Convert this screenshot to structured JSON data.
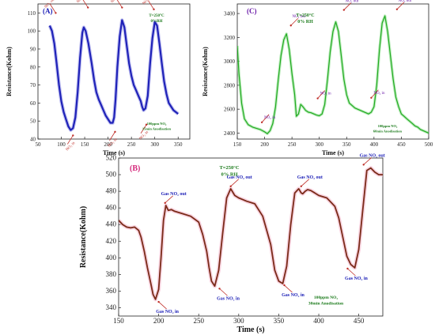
{
  "chart_data": [
    {
      "type": "line",
      "panel_label": "(A)",
      "xlabel": "Time (s)",
      "ylabel": "Resistance(Kohm)",
      "xlim": [
        50,
        375
      ],
      "ylim": [
        40,
        115
      ],
      "xticks": [
        50,
        100,
        150,
        200,
        250,
        300,
        350
      ],
      "yticks": [
        40,
        50,
        60,
        70,
        80,
        90,
        100,
        110
      ],
      "conditions": [
        "T=250°C",
        "0%RH"
      ],
      "note": [
        "100ppm NO₂",
        "15min Anodisation"
      ],
      "colors": {
        "line": "#1f22b8",
        "shade": "#9a9ae8",
        "text": "#1a7a1a",
        "arrow": "#c0302a",
        "label": "#1f22b8"
      },
      "series": [
        {
          "x": [
            75,
            80,
            85,
            90,
            95,
            100,
            105,
            110,
            115,
            120,
            125,
            130,
            135,
            140,
            145,
            148,
            152,
            158,
            165,
            170,
            175,
            180,
            185,
            190,
            195,
            200,
            205,
            210,
            213,
            216,
            220,
            225,
            230,
            235,
            240,
            245,
            250,
            255,
            260,
            265,
            270,
            273,
            276,
            280,
            285,
            290,
            295,
            300,
            305,
            310,
            315,
            320,
            325,
            330,
            340,
            350
          ],
          "y": [
            103,
            100,
            93,
            82,
            70,
            61,
            55,
            51,
            47,
            45,
            46,
            52,
            66,
            85,
            99,
            102,
            100,
            93,
            82,
            73,
            66,
            62,
            59,
            56,
            53,
            51,
            49,
            49,
            52,
            62,
            80,
            97,
            106,
            102,
            92,
            82,
            75,
            70,
            67,
            64,
            61,
            58,
            56,
            57,
            64,
            82,
            96,
            105,
            103,
            93,
            82,
            72,
            65,
            60,
            56,
            54
          ]
        }
      ],
      "annotations": [
        {
          "text": "NO₂ out",
          "x": 88,
          "y": 110
        },
        {
          "text": "NO₂ out",
          "x": 157,
          "y": 113
        },
        {
          "text": "NO₂ out",
          "x": 230,
          "y": 113
        },
        {
          "text": "NO₂ out",
          "x": 298,
          "y": 112
        },
        {
          "text": "NO₂ in",
          "x": 125,
          "y": 42
        },
        {
          "text": "NO₂ in",
          "x": 215,
          "y": 44
        },
        {
          "text": "NO₂ in",
          "x": 282,
          "y": 48
        }
      ]
    },
    {
      "type": "line",
      "panel_label": "(C)",
      "xlabel": "Time (s)",
      "ylabel": "Resistance(Kohm)",
      "xlim": [
        150,
        500
      ],
      "ylim": [
        2350,
        3480
      ],
      "xticks": [
        150,
        200,
        250,
        300,
        350,
        400,
        450,
        500
      ],
      "yticks": [
        2400,
        2600,
        2800,
        3000,
        3200,
        3400
      ],
      "conditions": [
        "T=250°C",
        "0% RH"
      ],
      "note": [
        "100ppm NO₂",
        "60min Anodisation"
      ],
      "colors": {
        "line": "#22aa22",
        "shade": "#90e090",
        "text": "#1a7a1a",
        "arrow": "#c0302a",
        "label": "#6a1aa8"
      },
      "series": [
        {
          "x": [
            150,
            153,
            158,
            163,
            170,
            178,
            185,
            192,
            200,
            205,
            210,
            215,
            220,
            225,
            230,
            235,
            240,
            245,
            250,
            255,
            258,
            262,
            266,
            270,
            275,
            280,
            285,
            290,
            295,
            300,
            305,
            310,
            315,
            320,
            325,
            330,
            335,
            340,
            345,
            350,
            355,
            360,
            365,
            370,
            375,
            380,
            385,
            390,
            395,
            400,
            405,
            410,
            415,
            420,
            425,
            430,
            435,
            440,
            445,
            450,
            455,
            460,
            465,
            470,
            475,
            480,
            485,
            490,
            495,
            500
          ],
          "y": [
            3130,
            2900,
            2650,
            2520,
            2470,
            2450,
            2440,
            2430,
            2410,
            2395,
            2420,
            2480,
            2620,
            2850,
            3050,
            3180,
            3230,
            3100,
            2900,
            2720,
            2540,
            2560,
            2640,
            2620,
            2590,
            2575,
            2570,
            2560,
            2550,
            2545,
            2560,
            2640,
            2850,
            3080,
            3250,
            3330,
            3250,
            3050,
            2850,
            2720,
            2650,
            2630,
            2610,
            2600,
            2590,
            2580,
            2570,
            2560,
            2575,
            2620,
            2800,
            3100,
            3320,
            3380,
            3250,
            3050,
            2850,
            2700,
            2620,
            2560,
            2540,
            2520,
            2500,
            2480,
            2460,
            2450,
            2430,
            2420,
            2410,
            2400
          ]
        }
      ],
      "annotations": [
        {
          "text": "NO₂ out",
          "x": 248,
          "y": 3300
        },
        {
          "text": "NO₂ out",
          "x": 345,
          "y": 3430
        },
        {
          "text": "NO₂ out",
          "x": 442,
          "y": 3435
        },
        {
          "text": "NO₂ in",
          "x": 195,
          "y": 2490
        },
        {
          "text": "NO₂ in",
          "x": 297,
          "y": 2690
        },
        {
          "text": "NO₂ in",
          "x": 395,
          "y": 2695
        }
      ]
    },
    {
      "type": "line",
      "panel_label": "(B)",
      "xlabel": "Time (s)",
      "ylabel": "Resistance(Kohm)",
      "xlim": [
        150,
        480
      ],
      "ylim": [
        330,
        520
      ],
      "xticks": [
        150,
        200,
        250,
        300,
        350,
        400,
        450
      ],
      "yticks": [
        340,
        360,
        380,
        400,
        420,
        440,
        460,
        480,
        500,
        520
      ],
      "conditions": [
        "T=250°C",
        "0% RH"
      ],
      "note": [
        "100ppm NO₂",
        "30min Anodisation"
      ],
      "colors": {
        "line": "#7a2a18",
        "shade": "#f4b8cc",
        "text": "#1a7a1a",
        "arrow": "#c0302a",
        "label": "#1f22b8"
      },
      "series": [
        {
          "x": [
            150,
            155,
            160,
            165,
            170,
            175,
            178,
            182,
            186,
            190,
            193,
            196,
            200,
            203,
            206,
            209,
            212,
            216,
            220,
            230,
            240,
            250,
            255,
            260,
            263,
            266,
            270,
            275,
            280,
            285,
            290,
            295,
            300,
            305,
            310,
            320,
            330,
            340,
            345,
            350,
            355,
            360,
            365,
            370,
            375,
            378,
            380,
            383,
            386,
            390,
            395,
            400,
            410,
            420,
            425,
            430,
            435,
            440,
            445,
            450,
            455,
            460,
            465,
            470,
            475,
            480
          ],
          "y": [
            445,
            440,
            437,
            436,
            437,
            433,
            425,
            408,
            388,
            370,
            356,
            350,
            362,
            400,
            445,
            463,
            457,
            458,
            456,
            453,
            450,
            443,
            428,
            408,
            388,
            372,
            366,
            385,
            430,
            472,
            483,
            475,
            472,
            470,
            468,
            465,
            450,
            416,
            385,
            372,
            369,
            390,
            440,
            478,
            483,
            478,
            477,
            480,
            482,
            481,
            478,
            475,
            472,
            462,
            448,
            425,
            402,
            392,
            388,
            410,
            458,
            505,
            508,
            503,
            500,
            500
          ]
        }
      ],
      "annotations": [
        {
          "text": "Gas NO₂ in",
          "x": 200,
          "y": 347
        },
        {
          "text": "Gas NO₂ out",
          "x": 208,
          "y": 466
        },
        {
          "text": "Gas NO₂ in",
          "x": 276,
          "y": 363
        },
        {
          "text": "Gas NO₂ out",
          "x": 290,
          "y": 486
        },
        {
          "text": "Gas NO₂ in",
          "x": 357,
          "y": 367
        },
        {
          "text": "Gas NO₂ out",
          "x": 378,
          "y": 486
        },
        {
          "text": "Gas NO₂ in",
          "x": 436,
          "y": 387
        },
        {
          "text": "Gas NO₂ out",
          "x": 456,
          "y": 512
        }
      ]
    }
  ]
}
